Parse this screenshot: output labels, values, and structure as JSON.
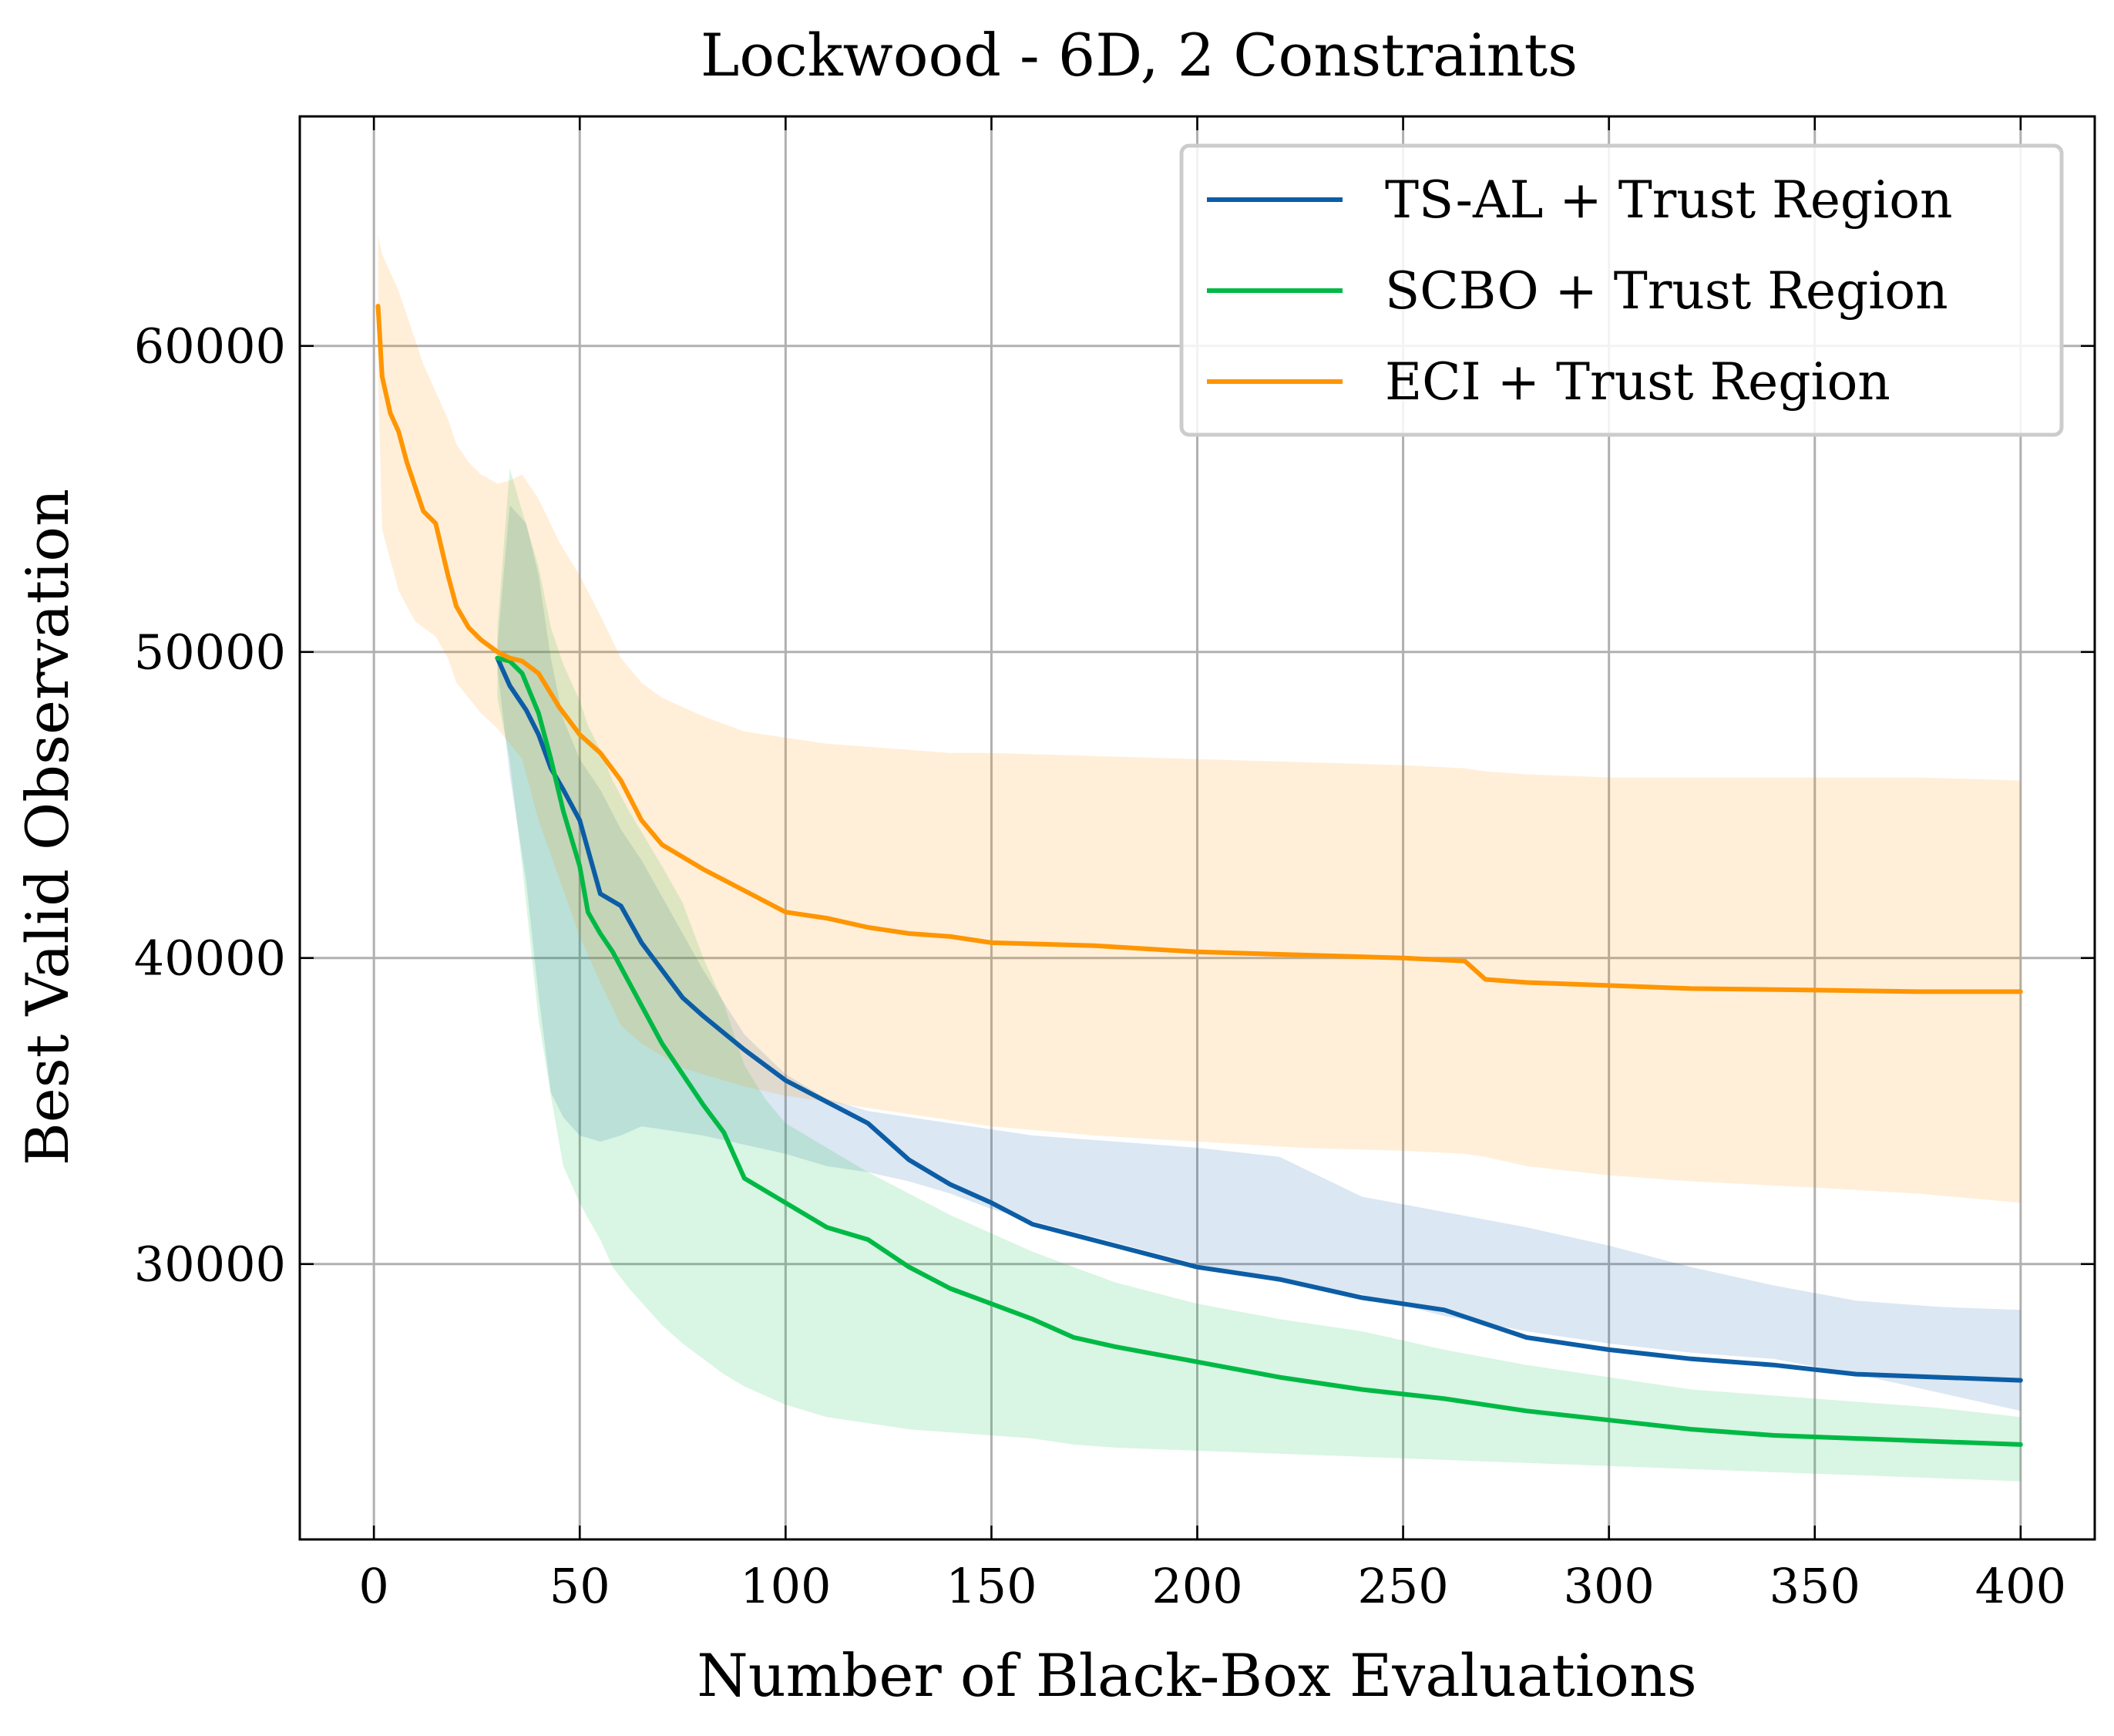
{
  "chart_data": {
    "type": "line",
    "title": "Lockwood - 6D, 2 Constraints",
    "xlabel": "Number of Black-Box Evaluations",
    "ylabel": "Best Valid Observation",
    "xlim": [
      -18,
      418
    ],
    "ylim": [
      21000,
      67500
    ],
    "xticks": [
      0,
      50,
      100,
      150,
      200,
      250,
      300,
      350,
      400
    ],
    "yticks": [
      30000,
      40000,
      50000,
      60000
    ],
    "grid": true,
    "legend_position": "top-right",
    "series": [
      {
        "name": "TS-AL + Trust Region",
        "color": "#0c5da5",
        "band_color": "#0c5da5",
        "x": [
          30,
          33,
          37,
          40,
          43,
          46,
          50,
          55,
          60,
          65,
          70,
          75,
          80,
          90,
          100,
          110,
          120,
          130,
          140,
          150,
          160,
          180,
          200,
          220,
          240,
          260,
          280,
          300,
          320,
          340,
          360,
          380,
          400
        ],
        "y": [
          49800,
          48900,
          48100,
          47300,
          46200,
          45500,
          44500,
          42100,
          41700,
          40500,
          39600,
          38700,
          38100,
          37000,
          36000,
          35300,
          34600,
          33400,
          32600,
          32000,
          31300,
          30600,
          29900,
          29500,
          28900,
          28500,
          27600,
          27200,
          26900,
          26700,
          26400,
          26300,
          26200
        ],
        "lower": [
          49500,
          46000,
          42500,
          38800,
          35600,
          34800,
          34200,
          34000,
          34200,
          34500,
          34400,
          34300,
          34200,
          33900,
          33600,
          33200,
          33000,
          32700,
          32300,
          31800,
          31400,
          30700,
          30000,
          29500,
          29000,
          28300,
          27800,
          27400,
          27100,
          26900,
          26400,
          25800,
          25200
        ],
        "upper": [
          50200,
          54800,
          54200,
          52500,
          49800,
          47800,
          46500,
          45500,
          44200,
          43200,
          42000,
          40800,
          39600,
          37500,
          36200,
          35400,
          35000,
          34800,
          34600,
          34400,
          34200,
          34000,
          33800,
          33500,
          32200,
          31700,
          31200,
          30600,
          29900,
          29300,
          28800,
          28600,
          28500
        ]
      },
      {
        "name": "SCBO + Trust Region",
        "color": "#00b945",
        "band_color": "#00b945",
        "x": [
          30,
          33,
          36,
          40,
          43,
          46,
          50,
          52,
          55,
          58,
          62,
          66,
          70,
          75,
          80,
          85,
          90,
          95,
          100,
          110,
          120,
          130,
          140,
          150,
          160,
          170,
          180,
          200,
          220,
          240,
          260,
          280,
          300,
          320,
          340,
          360,
          380,
          400
        ],
        "y": [
          49800,
          49700,
          49300,
          48000,
          46500,
          44800,
          43000,
          41500,
          40800,
          40200,
          39200,
          38200,
          37200,
          36200,
          35200,
          34300,
          32800,
          32400,
          32000,
          31200,
          30800,
          29900,
          29200,
          28700,
          28200,
          27600,
          27300,
          26800,
          26300,
          25900,
          25600,
          25200,
          24900,
          24600,
          24400,
          24300,
          24200,
          24100
        ],
        "lower": [
          48500,
          46500,
          43000,
          38000,
          35500,
          33200,
          32000,
          31500,
          30800,
          29900,
          29200,
          28600,
          28000,
          27400,
          26900,
          26400,
          26000,
          25700,
          25400,
          25000,
          24800,
          24600,
          24500,
          24400,
          24300,
          24100,
          24000,
          23900,
          23800,
          23700,
          23600,
          23500,
          23400,
          23300,
          23200,
          23100,
          23000,
          22900
        ],
        "upper": [
          50800,
          56000,
          54600,
          52800,
          50800,
          49600,
          48400,
          47600,
          46800,
          45800,
          44800,
          43900,
          43000,
          41800,
          40000,
          38500,
          36500,
          35400,
          34600,
          33800,
          33000,
          32300,
          31600,
          31000,
          30400,
          29900,
          29400,
          28700,
          28200,
          27800,
          27200,
          26700,
          26300,
          25900,
          25700,
          25500,
          25300,
          25000
        ]
      },
      {
        "name": "ECI + Trust Region",
        "color": "#ff9500",
        "band_color": "#ff9500",
        "x": [
          1,
          2,
          4,
          6,
          8,
          10,
          12,
          15,
          18,
          20,
          23,
          26,
          30,
          33,
          36,
          40,
          45,
          50,
          55,
          60,
          65,
          70,
          75,
          80,
          90,
          100,
          110,
          120,
          130,
          140,
          150,
          175,
          200,
          225,
          250,
          265,
          270,
          280,
          300,
          320,
          350,
          375,
          400
        ],
        "y": [
          61300,
          59000,
          57800,
          57200,
          56200,
          55400,
          54600,
          54200,
          52500,
          51500,
          50800,
          50400,
          50000,
          49800,
          49700,
          49300,
          48200,
          47300,
          46700,
          45800,
          44500,
          43700,
          43300,
          42900,
          42200,
          41500,
          41300,
          41000,
          40800,
          40700,
          40500,
          40400,
          40200,
          40100,
          40000,
          39900,
          39300,
          39200,
          39100,
          39000,
          38950,
          38900,
          38900
        ],
        "lower": [
          59000,
          54000,
          53000,
          52000,
          51500,
          51000,
          50800,
          50500,
          49800,
          49000,
          48500,
          48000,
          47500,
          47000,
          46500,
          44500,
          42600,
          40700,
          39200,
          37800,
          37200,
          36800,
          36400,
          36200,
          35800,
          35500,
          35300,
          35100,
          34900,
          34700,
          34500,
          34200,
          34000,
          33800,
          33700,
          33600,
          33500,
          33200,
          32900,
          32700,
          32500,
          32300,
          32000
        ],
        "upper": [
          63600,
          63000,
          62400,
          61800,
          61000,
          60200,
          59400,
          58500,
          57600,
          56800,
          56200,
          55800,
          55500,
          55600,
          55800,
          55000,
          53600,
          52500,
          51200,
          49800,
          49000,
          48500,
          48200,
          47900,
          47400,
          47200,
          47000,
          46900,
          46800,
          46700,
          46700,
          46600,
          46500,
          46400,
          46300,
          46200,
          46100,
          46000,
          45900,
          45900,
          45900,
          45900,
          45800
        ]
      }
    ]
  }
}
